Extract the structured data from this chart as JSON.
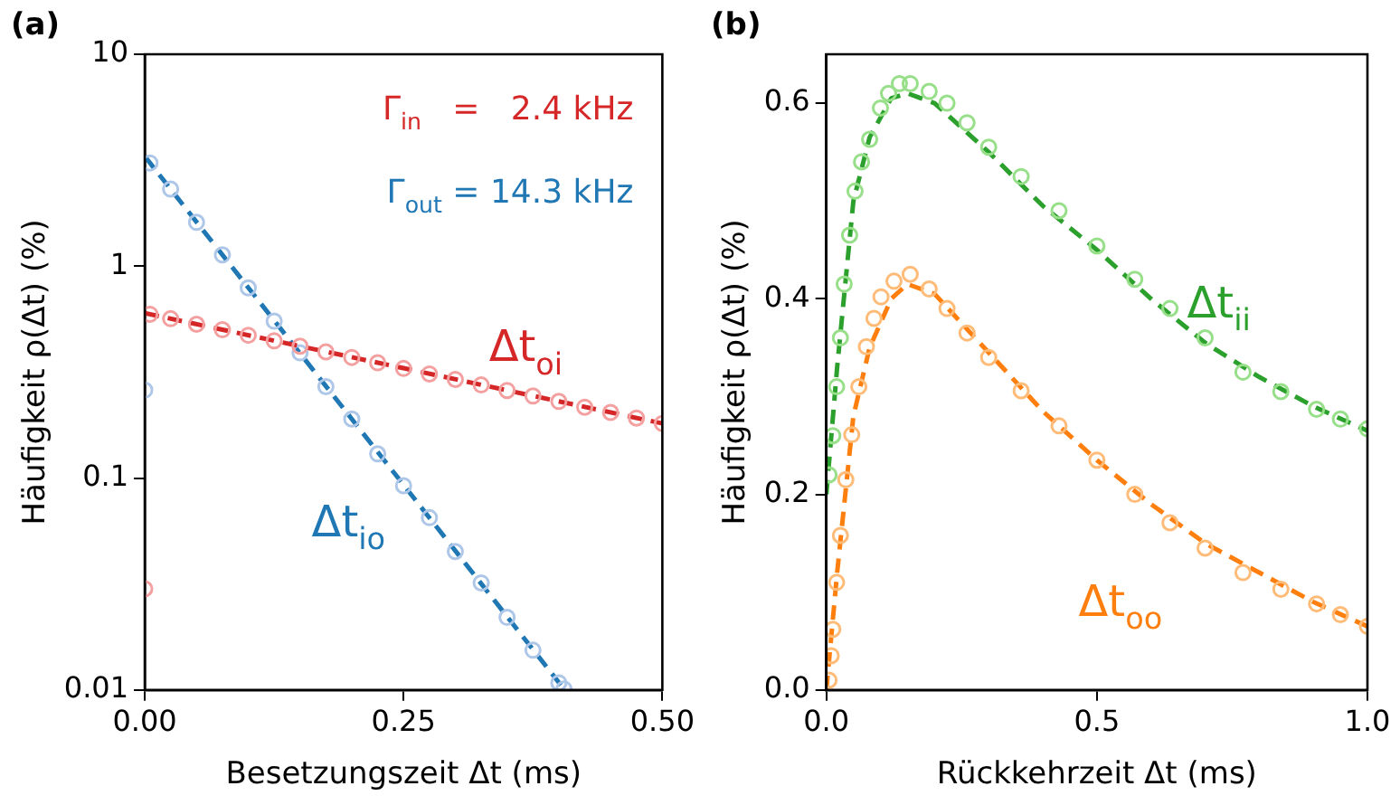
{
  "chart_data": [
    {
      "type": "scatter",
      "title": "(a)",
      "xlabel": "Besetzungszeit Δt (ms)",
      "ylabel": "Häufigkeit ρ(Δt) (%)",
      "log": "y",
      "grid": false,
      "legend": false,
      "xlim": [
        0,
        0.5
      ],
      "xticks": [
        {
          "value": 0,
          "label": "0.00"
        },
        {
          "value": 0.25,
          "label": "0.25"
        },
        {
          "value": 0.5,
          "label": "0.50"
        }
      ],
      "ylim": [
        0.01,
        10
      ],
      "yticks": [
        0.01,
        0.1,
        1,
        10
      ],
      "annotations": [
        "Γ$_{in}$   =   2.4 kHz",
        "Γ$_{out}$ = 14.3 kHz"
      ],
      "series": [
        {
          "marker": "circle",
          "color": "#f4a0a0",
          "x": [
            0,
            0.005,
            0.025,
            0.05,
            0.075,
            0.1,
            0.125,
            0.15,
            0.175,
            0.2,
            0.225,
            0.25,
            0.275,
            0.3,
            0.325,
            0.35,
            0.375,
            0.4,
            0.425,
            0.45,
            0.475,
            0.5
          ],
          "values": [
            0.03,
            0.593,
            0.565,
            0.532,
            0.501,
            0.472,
            0.444,
            0.419,
            0.394,
            0.371,
            0.35,
            0.329,
            0.31,
            0.292,
            0.275,
            0.259,
            0.244,
            0.23,
            0.216,
            0.204,
            0.192,
            0.181
          ]
        },
        {
          "type": "line",
          "name": "Δt$_{oi}$",
          "marker": "none",
          "line_style": "dashed",
          "color": "#d62728",
          "x": [
            0,
            0.25,
            0.5
          ],
          "values": [
            0.6,
            0.33,
            0.181
          ]
        },
        {
          "marker": "circle",
          "color": "#aec7e8",
          "x": [
            0,
            0.005,
            0.025,
            0.05,
            0.075,
            0.1,
            0.125,
            0.15,
            0.175,
            0.2,
            0.225,
            0.25,
            0.275,
            0.3,
            0.325,
            0.35,
            0.375,
            0.4,
            0.405
          ],
          "values": [
            0.26,
            3.07,
            2.31,
            1.61,
            1.13,
            0.79,
            0.55,
            0.39,
            0.27,
            0.19,
            0.13,
            0.092,
            0.065,
            0.045,
            0.032,
            0.022,
            0.0154,
            0.0108,
            0.0101
          ]
        },
        {
          "type": "line",
          "name": "Δt$_{io}$",
          "marker": "none",
          "line_style": "dashed",
          "color": "#1f77b4",
          "x": [
            0,
            0.2,
            0.405
          ],
          "values": [
            3.3,
            0.19,
            0.0101
          ]
        }
      ]
    },
    {
      "type": "scatter",
      "title": "(b)",
      "xlabel": "Rückkehrzeit Δt (ms)",
      "ylabel": "Häufigkeit ρ(Δt) (%)",
      "grid": false,
      "legend": false,
      "xlim": [
        0,
        1
      ],
      "xticks": [
        {
          "value": 0,
          "label": "0.0"
        },
        {
          "value": 0.5,
          "label": "0.5"
        },
        {
          "value": 1,
          "label": "1.0"
        }
      ],
      "ylim": [
        0,
        0.65
      ],
      "yticks": [
        {
          "value": 0,
          "label": "0.0"
        },
        {
          "value": 0.2,
          "label": "0.2"
        },
        {
          "value": 0.4,
          "label": "0.4"
        },
        {
          "value": 0.6,
          "label": "0.6"
        }
      ],
      "series": [
        {
          "marker": "circle",
          "color": "#98df8a",
          "x": [
            0.005,
            0.012,
            0.019,
            0.026,
            0.033,
            0.043,
            0.053,
            0.065,
            0.08,
            0.1,
            0.115,
            0.135,
            0.155,
            0.19,
            0.223,
            0.26,
            0.3,
            0.36,
            0.43,
            0.5,
            0.57,
            0.635,
            0.7,
            0.77,
            0.84,
            0.906,
            0.95,
            1.0
          ],
          "values": [
            0.22,
            0.26,
            0.31,
            0.36,
            0.415,
            0.465,
            0.51,
            0.54,
            0.563,
            0.595,
            0.61,
            0.62,
            0.62,
            0.612,
            0.6,
            0.58,
            0.555,
            0.525,
            0.49,
            0.454,
            0.42,
            0.39,
            0.36,
            0.325,
            0.305,
            0.287,
            0.277,
            0.267
          ]
        },
        {
          "type": "line",
          "name": "Δt$_{ii}$",
          "marker": "none",
          "line_style": "dashed",
          "color": "#2ca02c",
          "x": [
            0,
            0.02,
            0.05,
            0.08,
            0.12,
            0.15,
            0.2,
            0.3,
            0.4,
            0.5,
            0.6,
            0.7,
            0.8,
            0.9,
            1.0
          ],
          "values": [
            0.2,
            0.33,
            0.5,
            0.565,
            0.605,
            0.61,
            0.6,
            0.55,
            0.495,
            0.45,
            0.4,
            0.355,
            0.32,
            0.29,
            0.265
          ]
        },
        {
          "marker": "circle",
          "color": "#ffbb78",
          "x": [
            0.005,
            0.009,
            0.012,
            0.019,
            0.026,
            0.036,
            0.047,
            0.06,
            0.074,
            0.088,
            0.101,
            0.125,
            0.155,
            0.19,
            0.223,
            0.26,
            0.3,
            0.36,
            0.43,
            0.5,
            0.57,
            0.635,
            0.7,
            0.77,
            0.84,
            0.906,
            0.95,
            1.0
          ],
          "values": [
            0.01,
            0.035,
            0.062,
            0.11,
            0.158,
            0.215,
            0.261,
            0.31,
            0.351,
            0.38,
            0.402,
            0.418,
            0.425,
            0.41,
            0.39,
            0.365,
            0.34,
            0.306,
            0.27,
            0.235,
            0.2,
            0.171,
            0.145,
            0.12,
            0.103,
            0.088,
            0.077,
            0.065
          ]
        },
        {
          "type": "line",
          "name": "Δt$_{oo}$",
          "marker": "none",
          "line_style": "dashed",
          "color": "#ff7f0e",
          "x": [
            0,
            0.02,
            0.05,
            0.08,
            0.12,
            0.15,
            0.2,
            0.3,
            0.4,
            0.5,
            0.6,
            0.7,
            0.8,
            0.9,
            1.0
          ],
          "values": [
            0,
            0.12,
            0.28,
            0.35,
            0.4,
            0.415,
            0.405,
            0.345,
            0.285,
            0.235,
            0.19,
            0.15,
            0.12,
            0.09,
            0.065
          ]
        }
      ]
    }
  ]
}
